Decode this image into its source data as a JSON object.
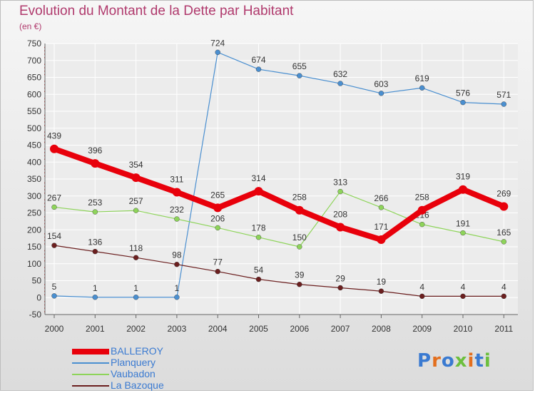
{
  "title": "Evolution du Montant de la Dette par Habitant",
  "subtitle": "(en €)",
  "logo": {
    "text": "Proxiti",
    "colors": [
      "#3a7ad1",
      "#e36f1e",
      "#3a7ad1",
      "#6cbf3d",
      "#e36f1e",
      "#3a7ad1",
      "#6cbf3d"
    ]
  },
  "chart_data": {
    "type": "line",
    "x": [
      "2000",
      "2001",
      "2002",
      "2003",
      "2004",
      "2005",
      "2006",
      "2007",
      "2008",
      "2009",
      "2010",
      "2011"
    ],
    "ylim": [
      -50,
      750
    ],
    "yticks": [
      -50,
      0,
      50,
      100,
      150,
      200,
      250,
      300,
      350,
      400,
      450,
      500,
      550,
      600,
      650,
      700,
      750
    ],
    "grid": true,
    "legend_position": "bottom-left",
    "series": [
      {
        "name": "BALLEROY",
        "color": "#e8000b",
        "values": [
          439,
          396,
          354,
          311,
          265,
          314,
          258,
          208,
          171,
          258,
          319,
          269
        ]
      },
      {
        "name": "Planquery",
        "color": "#4a8fd0",
        "values": [
          5,
          1,
          1,
          1,
          724,
          674,
          655,
          632,
          603,
          619,
          576,
          571
        ]
      },
      {
        "name": "Vaubadon",
        "color": "#8ed45a",
        "values": [
          267,
          253,
          257,
          232,
          206,
          178,
          150,
          313,
          266,
          216,
          191,
          165
        ]
      },
      {
        "name": "La Bazoque",
        "color": "#6b1f1f",
        "values": [
          154,
          136,
          118,
          98,
          77,
          54,
          39,
          29,
          19,
          4,
          4,
          4
        ]
      }
    ]
  }
}
